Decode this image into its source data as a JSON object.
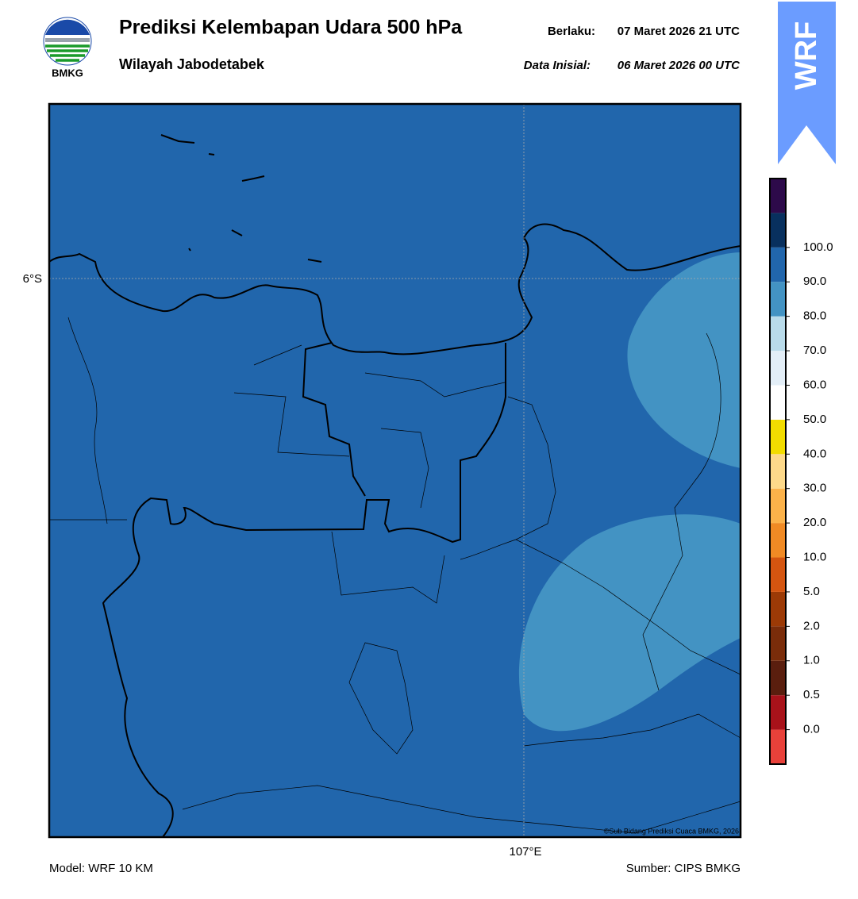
{
  "header": {
    "logo_text": "BMKG",
    "title": "Prediksi Kelembapan Udara 500 hPa",
    "subtitle": "Wilayah Jabodetabek",
    "valid_label": "Berlaku:",
    "valid_time": "07 Maret 2026 21 UTC",
    "init_label": "Data Inisial:",
    "init_time": "06 Maret 2026 00 UTC",
    "badge": "WRF"
  },
  "map": {
    "lat_label": "6°S",
    "lon_label": "107°E",
    "credit": "©Sub Bidang Prediksi Cuaca BMKG, 2026"
  },
  "colorbar": {
    "colors": [
      "#e8413a",
      "#a8121a",
      "#5a1e0e",
      "#7a2c0a",
      "#9c3a06",
      "#d45510",
      "#f08a24",
      "#fbb24a",
      "#fdd98a",
      "#f2dc00",
      "#ffffff",
      "#e3eef7",
      "#b9dbea",
      "#4393c3",
      "#2166ac",
      "#08305e",
      "#2d0a4a"
    ],
    "ticks": [
      {
        "value": 0,
        "label": "0.0"
      },
      {
        "value": 0.5,
        "label": "0.5"
      },
      {
        "value": 1,
        "label": "1.0"
      },
      {
        "value": 2,
        "label": "2.0"
      },
      {
        "value": 5,
        "label": "5.0"
      },
      {
        "value": 10,
        "label": "10.0"
      },
      {
        "value": 20,
        "label": "20.0"
      },
      {
        "value": 30,
        "label": "30.0"
      },
      {
        "value": 40,
        "label": "40.0"
      },
      {
        "value": 50,
        "label": "50.0"
      },
      {
        "value": 60,
        "label": "60.0"
      },
      {
        "value": 70,
        "label": "70.0"
      },
      {
        "value": 80,
        "label": "80.0"
      },
      {
        "value": 90,
        "label": "90.0"
      },
      {
        "value": 100,
        "label": "100.0"
      }
    ]
  },
  "footer": {
    "model": "Model: WRF 10 KM",
    "source": "Sumber: CIPS BMKG"
  }
}
